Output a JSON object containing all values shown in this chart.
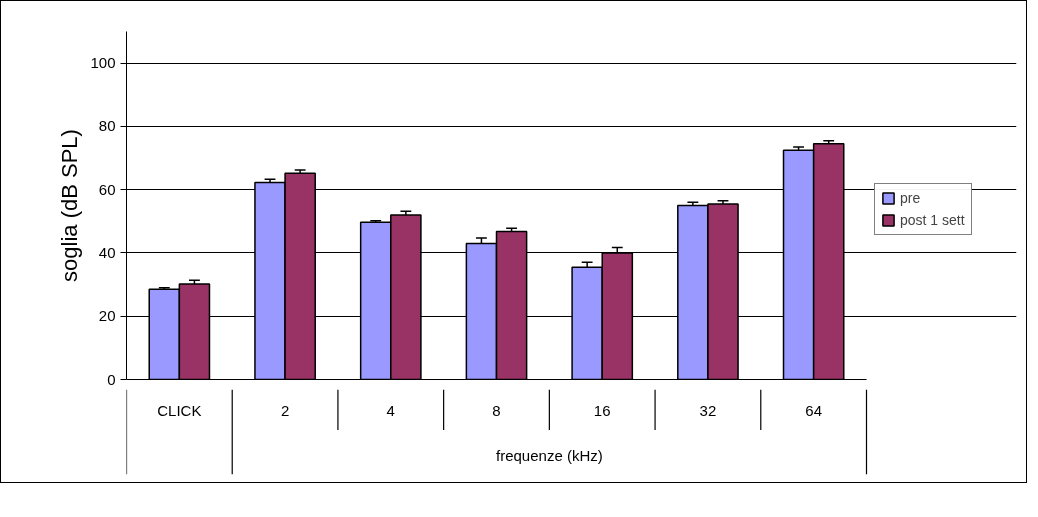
{
  "chart_data": {
    "type": "bar",
    "ylabel": "soglia (dB SPL)",
    "xlabel": "frequenze (kHz)",
    "categories": [
      "CLICK",
      "2",
      "4",
      "8",
      "16",
      "32",
      "64"
    ],
    "series": [
      {
        "name": "pre",
        "color": "#9999ff",
        "values": [
          28.5,
          62.3,
          49.7,
          43,
          35.5,
          55,
          72.5
        ],
        "errors": [
          [
            28.5,
            29
          ],
          [
            62.3,
            63.3
          ],
          [
            49.7,
            50.2
          ],
          [
            43,
            44.7
          ],
          [
            35.5,
            37.1
          ],
          [
            55,
            56
          ],
          [
            72.5,
            73.5
          ]
        ]
      },
      {
        "name": "post 1 sett",
        "color": "#993366",
        "values": [
          30.2,
          65.2,
          52,
          46.8,
          40,
          55.5,
          74.5
        ],
        "errors": [
          [
            30.2,
            31.4
          ],
          [
            65.2,
            66.2
          ],
          [
            52,
            53.2
          ],
          [
            46.8,
            47.8
          ],
          [
            40,
            41.7
          ],
          [
            55.5,
            56.5
          ],
          [
            74.5,
            75.5
          ]
        ]
      }
    ],
    "ylim": [
      0,
      110
    ],
    "yticks": [
      0,
      20,
      40,
      60,
      80,
      100
    ],
    "grid": "y",
    "legend": "right"
  }
}
